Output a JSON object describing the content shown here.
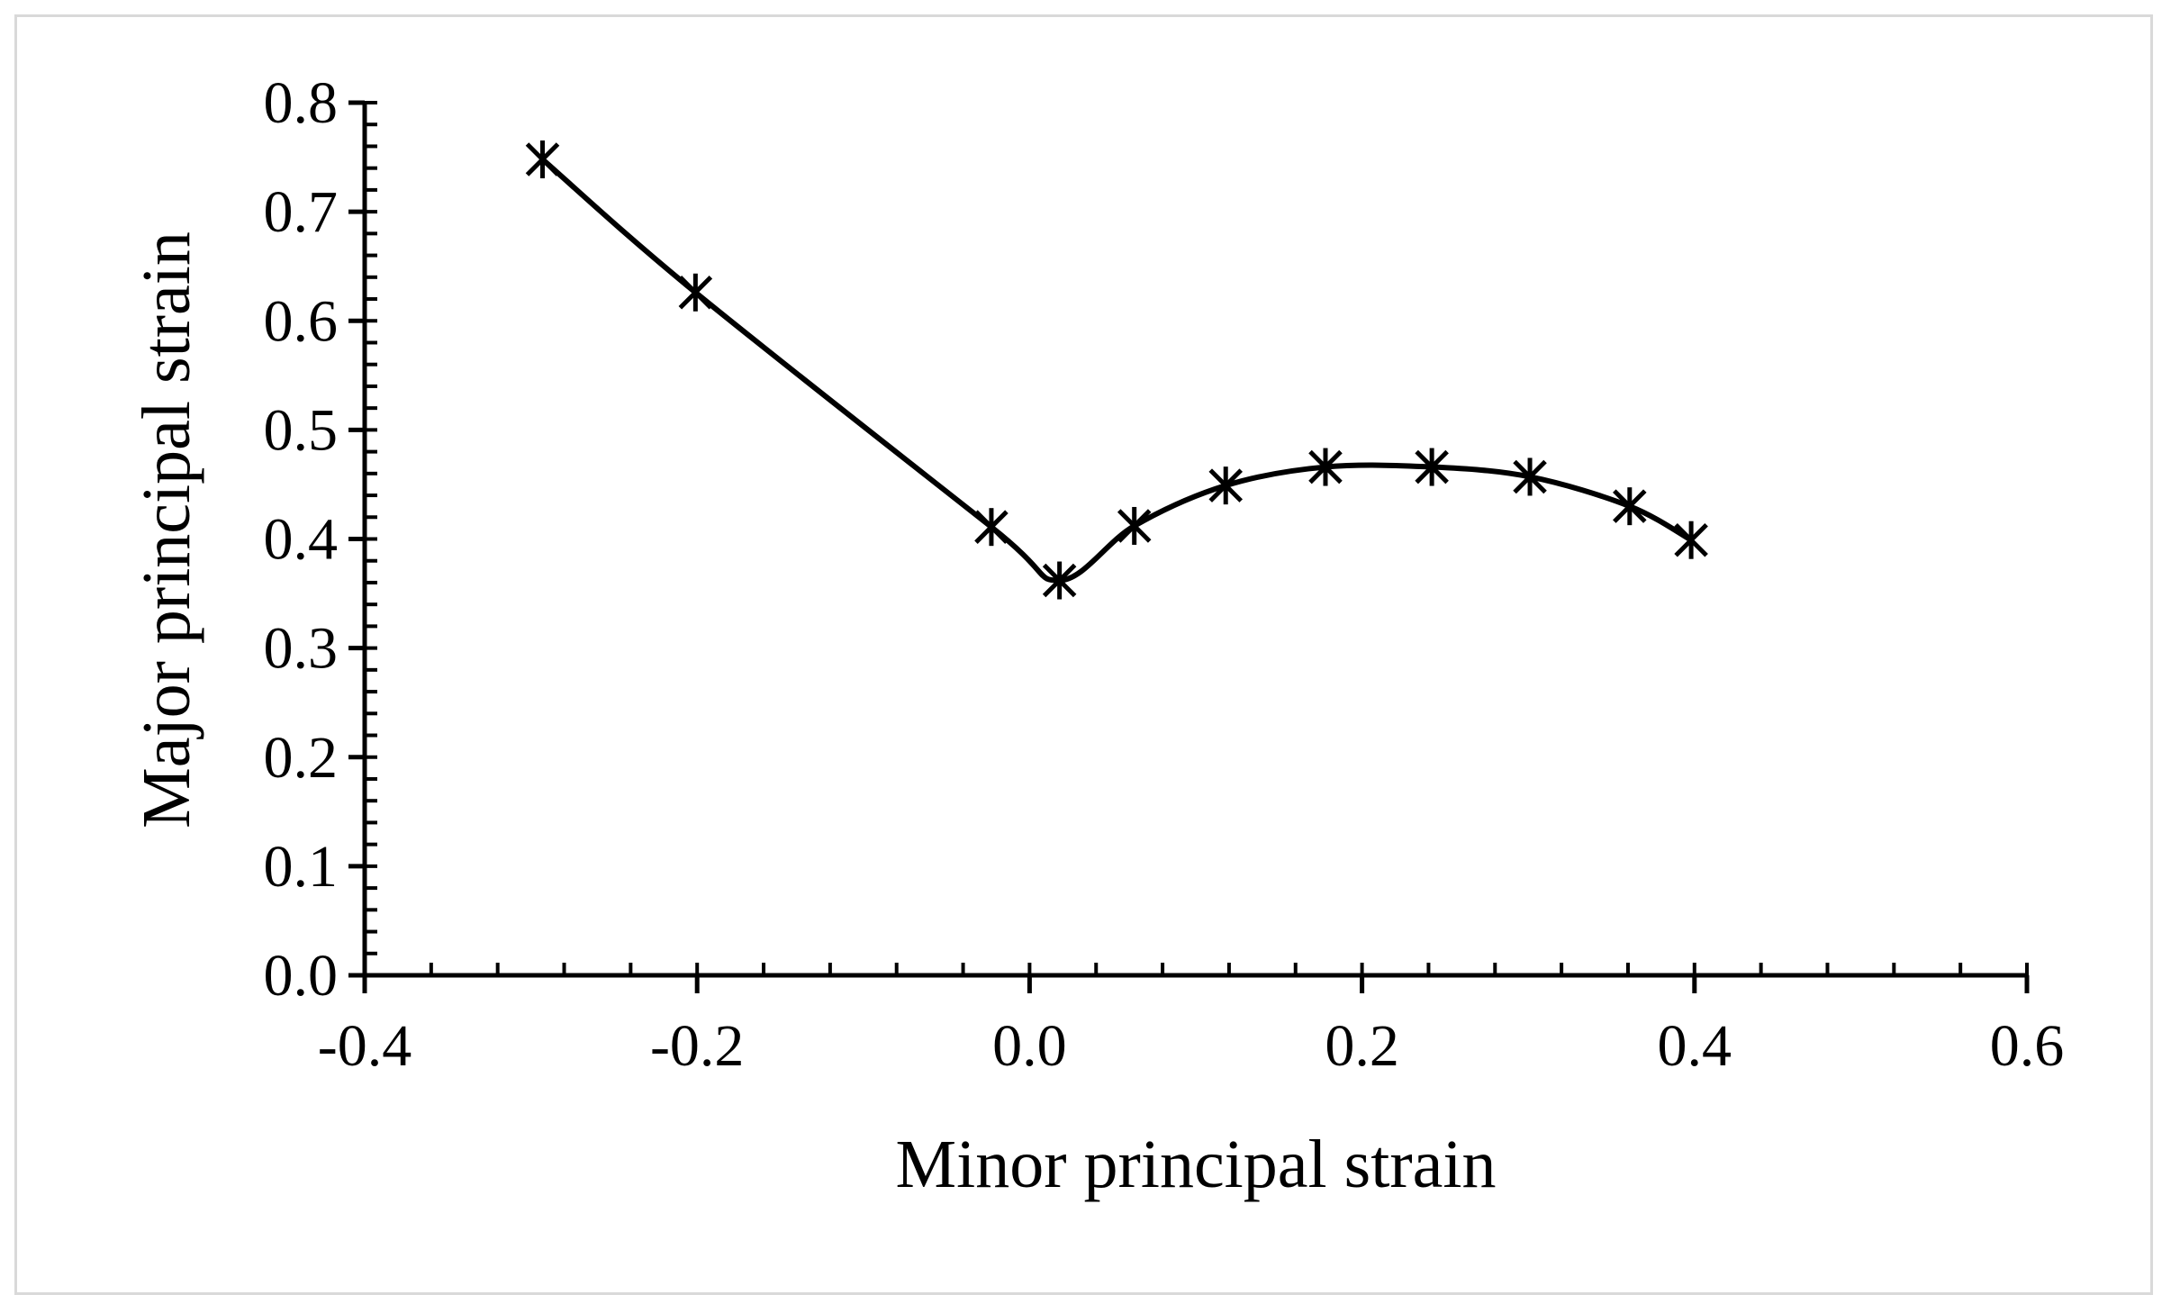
{
  "chart_data": {
    "type": "scatter",
    "style": "smooth-line-with-markers",
    "marker": "asterisk",
    "xlabel": "Minor principal strain",
    "ylabel": "Major principal strain",
    "xlim": [
      -0.4,
      0.6
    ],
    "ylim": [
      0.0,
      0.8
    ],
    "x_ticks": [
      "-0.4",
      "-0.2",
      "0.0",
      "0.2",
      "0.4",
      "0.6"
    ],
    "y_ticks": [
      "0.0",
      "0.1",
      "0.2",
      "0.3",
      "0.4",
      "0.5",
      "0.6",
      "0.7",
      "0.8"
    ],
    "grid": false,
    "legend": "none",
    "series": [
      {
        "color": "#000000",
        "points": [
          {
            "x": -0.293,
            "y": 0.748
          },
          {
            "x": -0.201,
            "y": 0.626
          },
          {
            "x": -0.023,
            "y": 0.411
          },
          {
            "x": 0.018,
            "y": 0.362
          },
          {
            "x": 0.063,
            "y": 0.412
          },
          {
            "x": 0.118,
            "y": 0.449
          },
          {
            "x": 0.178,
            "y": 0.466
          },
          {
            "x": 0.242,
            "y": 0.466
          },
          {
            "x": 0.301,
            "y": 0.457
          },
          {
            "x": 0.361,
            "y": 0.43
          },
          {
            "x": 0.398,
            "y": 0.399
          }
        ]
      }
    ]
  }
}
